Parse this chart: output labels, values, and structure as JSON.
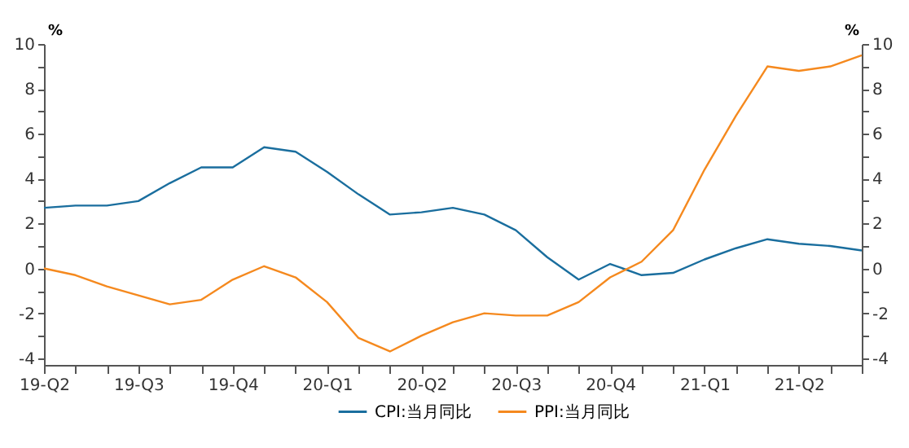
{
  "chart_data": {
    "type": "line",
    "ylabel": "%",
    "y2label": "%",
    "categories": [
      "19-Q2",
      null,
      null,
      "19-Q3",
      null,
      null,
      "19-Q4",
      null,
      null,
      "20-Q1",
      null,
      null,
      "20-Q2",
      null,
      null,
      "20-Q3",
      null,
      null,
      "20-Q4",
      null,
      null,
      "21-Q1",
      null,
      null,
      "21-Q2",
      null,
      null
    ],
    "series": [
      {
        "name": "CPI:当月同比",
        "color": "#1a6e9e",
        "values": [
          2.7,
          2.8,
          2.8,
          3.0,
          3.8,
          4.5,
          4.5,
          5.4,
          5.2,
          4.3,
          3.3,
          2.4,
          2.5,
          2.7,
          2.4,
          1.7,
          0.5,
          -0.5,
          0.2,
          -0.3,
          -0.2,
          0.4,
          0.9,
          1.3,
          1.1,
          1.0,
          0.8
        ]
      },
      {
        "name": "PPI:当月同比",
        "color": "#f5891e",
        "values": [
          0.0,
          -0.3,
          -0.8,
          -1.2,
          -1.6,
          -1.4,
          -0.5,
          0.1,
          -0.4,
          -1.5,
          -3.1,
          -3.7,
          -3.0,
          -2.4,
          -2.0,
          -2.1,
          -2.1,
          -1.5,
          -0.4,
          0.3,
          1.7,
          4.4,
          6.8,
          9.0,
          8.8,
          9.0,
          9.5
        ]
      }
    ],
    "ylim": [
      -4.3,
      10
    ],
    "yticks": [
      -4,
      {
        "value": -3,
        "label": null
      },
      -2,
      {
        "value": -1,
        "label": null
      },
      0,
      {
        "value": 1,
        "label": null
      },
      2,
      {
        "value": 3,
        "label": null
      },
      4,
      {
        "value": 5,
        "label": null
      },
      6,
      {
        "value": 7,
        "label": null
      },
      8,
      {
        "value": 9,
        "label": null
      },
      10
    ],
    "y2lim": [
      -4.3,
      10
    ],
    "y2ticks": [
      -4,
      {
        "value": -3,
        "label": null
      },
      -2,
      {
        "value": -1,
        "label": null
      },
      0,
      {
        "value": 1,
        "label": null
      },
      2,
      {
        "value": 3,
        "label": null
      },
      4,
      {
        "value": 5,
        "label": null
      },
      6,
      {
        "value": 7,
        "label": null
      },
      8,
      {
        "value": 9,
        "label": null
      },
      10
    ],
    "legend": "bottom",
    "grid": false
  }
}
